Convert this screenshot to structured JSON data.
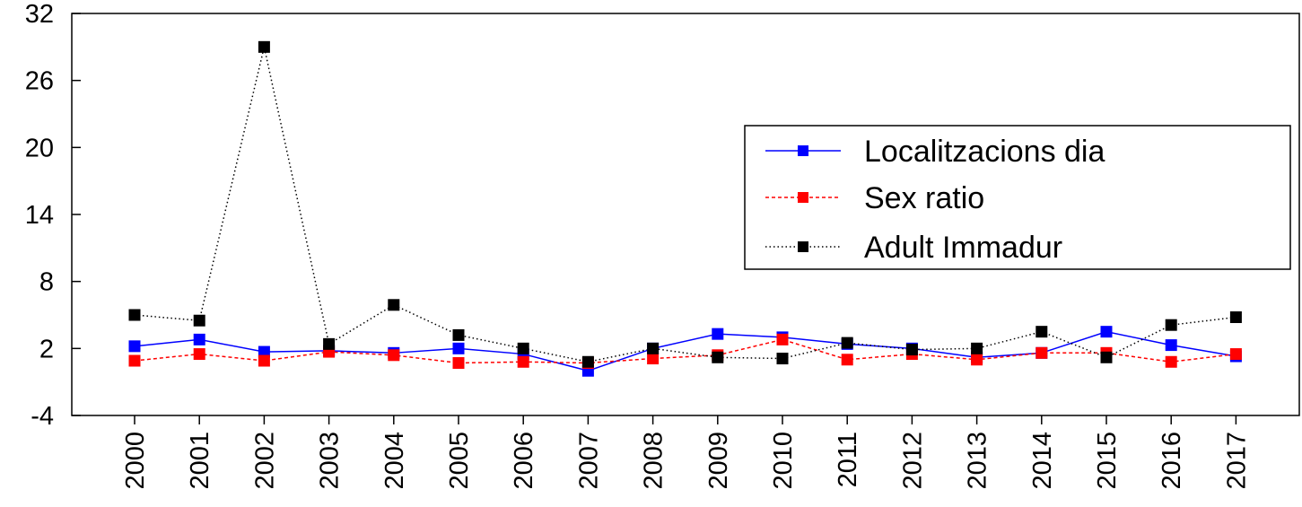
{
  "chart_data": {
    "type": "line",
    "categories": [
      "2000",
      "2001",
      "2002",
      "2003",
      "2004",
      "2005",
      "2006",
      "2007",
      "2008",
      "2009",
      "2010",
      "2011",
      "2012",
      "2013",
      "2014",
      "2015",
      "2016",
      "2017"
    ],
    "ylim": [
      -4,
      32
    ],
    "yticks": [
      "32",
      "26",
      "20",
      "14",
      "8",
      "2",
      "-4"
    ],
    "grid": false,
    "legend_position": "center-right",
    "series": [
      {
        "name": "Localitzacions dia",
        "color": "#0000ff",
        "line_style": "solid",
        "values": [
          2.2,
          2.8,
          1.7,
          1.8,
          1.6,
          2.0,
          1.5,
          0.0,
          2.0,
          3.3,
          3.0,
          2.4,
          2.0,
          1.2,
          1.6,
          3.5,
          2.3,
          1.3
        ]
      },
      {
        "name": "Sex ratio",
        "color": "#ff0000",
        "line_style": "dashed",
        "values": [
          0.9,
          1.5,
          0.9,
          1.7,
          1.4,
          0.7,
          0.8,
          0.7,
          1.1,
          1.4,
          2.8,
          1.0,
          1.5,
          1.0,
          1.6,
          1.6,
          0.8,
          1.5
        ]
      },
      {
        "name": "Adult Immadur",
        "color": "#000000",
        "line_style": "dotted",
        "values": [
          5.0,
          4.5,
          29.0,
          2.4,
          5.9,
          3.2,
          2.0,
          0.8,
          2.0,
          1.2,
          1.1,
          2.5,
          1.9,
          2.0,
          3.5,
          1.2,
          4.1,
          4.8
        ]
      }
    ]
  }
}
